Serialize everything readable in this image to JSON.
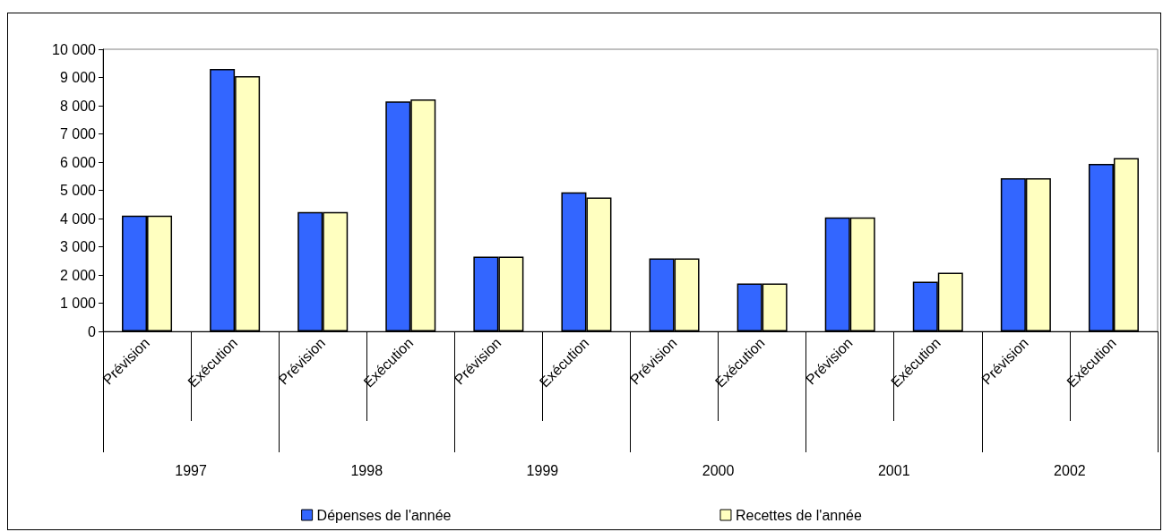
{
  "chart_data": {
    "type": "bar",
    "categories": [
      "Prévision",
      "Exécution",
      "Prévision",
      "Exécution",
      "Prévision",
      "Exécution",
      "Prévision",
      "Exécution",
      "Prévision",
      "Exécution",
      "Prévision",
      "Exécution"
    ],
    "series": [
      {
        "name": "Dépenses de l'année",
        "color": "#3366ff",
        "values": [
          4100,
          9300,
          4230,
          8150,
          2650,
          4930,
          2590,
          1700,
          4040,
          1760,
          5430,
          5940
        ]
      },
      {
        "name": "Recettes de l'année",
        "color": "#ffffc0",
        "values": [
          4100,
          9050,
          4230,
          8220,
          2650,
          4750,
          2590,
          1700,
          4040,
          2080,
          5430,
          6140
        ]
      }
    ],
    "annotations": [
      "1997",
      "1998",
      "1999",
      "2000",
      "2001",
      "2002"
    ],
    "ylim": [
      0,
      10000
    ],
    "yticks": [
      0,
      {
        "value": 1000,
        "label": "1 000"
      },
      {
        "value": 2000,
        "label": "2 000"
      },
      {
        "value": 3000,
        "label": "3 000"
      },
      {
        "value": 4000,
        "label": "4 000"
      },
      {
        "value": 5000,
        "label": "5 000"
      },
      {
        "value": 6000,
        "label": "6 000"
      },
      {
        "value": 7000,
        "label": "7 000"
      },
      {
        "value": 8000,
        "label": "8 000"
      },
      {
        "value": 9000,
        "label": "9 000"
      },
      {
        "value": 10000,
        "label": "10 000"
      }
    ],
    "grid": false,
    "legend": "bottom"
  }
}
